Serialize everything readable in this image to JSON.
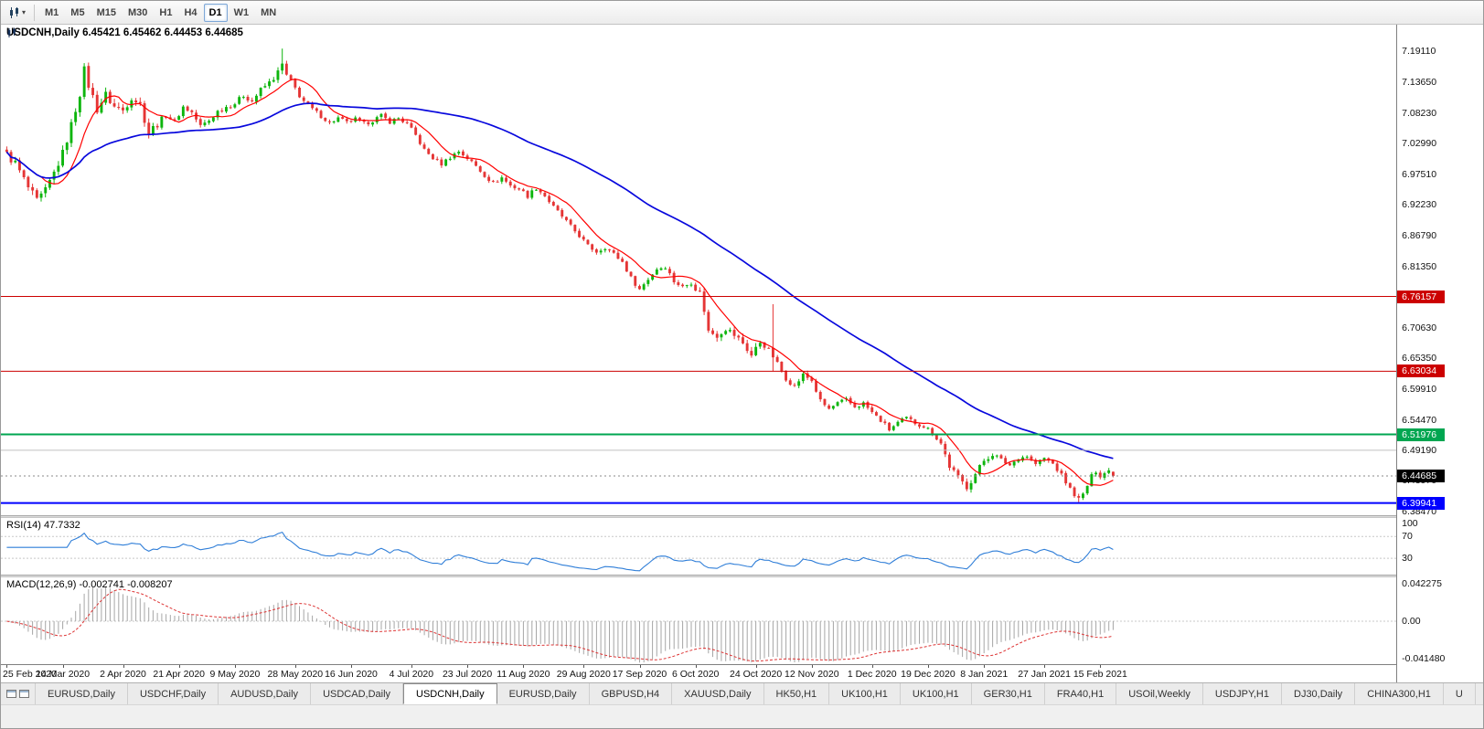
{
  "toolbar": {
    "timeframes": [
      {
        "label": "M1",
        "active": false
      },
      {
        "label": "M5",
        "active": false
      },
      {
        "label": "M15",
        "active": false
      },
      {
        "label": "M30",
        "active": false
      },
      {
        "label": "H1",
        "active": false
      },
      {
        "label": "H4",
        "active": false
      },
      {
        "label": "D1",
        "active": true
      },
      {
        "label": "W1",
        "active": false
      },
      {
        "label": "MN",
        "active": false
      }
    ]
  },
  "main_chart": {
    "title_line": "USDCNH,Daily 6.45421 6.45462 6.44453 6.44685"
  },
  "rsi_panel": {
    "label": "RSI(14) 47.7332"
  },
  "macd_panel": {
    "label": "MACD(12,26,9) -0.002741 -0.008207"
  },
  "tabs": {
    "items": [
      {
        "label": "EURUSD,Daily",
        "active": false
      },
      {
        "label": "USDCHF,Daily",
        "active": false
      },
      {
        "label": "AUDUSD,Daily",
        "active": false
      },
      {
        "label": "USDCAD,Daily",
        "active": false
      },
      {
        "label": "USDCNH,Daily",
        "active": true
      },
      {
        "label": "EURUSD,Daily",
        "active": false
      },
      {
        "label": "GBPUSD,H4",
        "active": false
      },
      {
        "label": "XAUUSD,Daily",
        "active": false
      },
      {
        "label": "HK50,H1",
        "active": false
      },
      {
        "label": "UK100,H1",
        "active": false
      },
      {
        "label": "UK100,H1",
        "active": false
      },
      {
        "label": "GER30,H1",
        "active": false
      },
      {
        "label": "FRA40,H1",
        "active": false
      },
      {
        "label": "USOil,Weekly",
        "active": false
      },
      {
        "label": "USDJPY,H1",
        "active": false
      },
      {
        "label": "DJ30,Daily",
        "active": false
      },
      {
        "label": "CHINA300,H1",
        "active": false
      },
      {
        "label": "U",
        "active": false
      }
    ]
  },
  "chart_data": {
    "type": "candlestick",
    "symbol": "USDCNH",
    "period": "Daily",
    "ohlc_current": {
      "open": 6.45421,
      "high": 6.45462,
      "low": 6.44453,
      "close": 6.44685
    },
    "x_labels": [
      "25 Feb 2020",
      "14 Mar 2020",
      "2 Apr 2020",
      "21 Apr 2020",
      "9 May 2020",
      "28 May 2020",
      "16 Jun 2020",
      "4 Jul 2020",
      "23 Jul 2020",
      "11 Aug 2020",
      "29 Aug 2020",
      "17 Sep 2020",
      "6 Oct 2020",
      "24 Oct 2020",
      "12 Nov 2020",
      "1 Dec 2020",
      "19 Dec 2020",
      "8 Jan 2021",
      "27 Jan 2021",
      "15 Feb 2021"
    ],
    "n_candles": 258,
    "last_label_index": 254,
    "data_fraction": 0.795,
    "y_axis": {
      "min": 6.378,
      "max": 7.238,
      "tick_labels": [
        "7.19110",
        "7.13650",
        "7.08230",
        "7.02990",
        "6.97510",
        "6.92230",
        "6.86790",
        "6.81350",
        "6.70630",
        "6.65350",
        "6.59910",
        "6.54470",
        "6.49190",
        "6.43970",
        "6.38470"
      ]
    },
    "hlines": [
      {
        "name": "level-line-gray",
        "price": 6.4919,
        "color": "#c0c0c0",
        "width": 1,
        "badge": null
      },
      {
        "name": "resistance-line-upper",
        "price": 6.76157,
        "color": "#cc0000",
        "width": 1,
        "badge": "6.76157"
      },
      {
        "name": "resistance-line-lower",
        "price": 6.63034,
        "color": "#cc0000",
        "width": 1,
        "badge": "6.63034"
      },
      {
        "name": "support-line-green",
        "price": 6.51976,
        "color": "#00a651",
        "width": 2,
        "badge": "6.51976"
      },
      {
        "name": "support-line-blue",
        "price": 6.39941,
        "color": "#0000ff",
        "width": 2,
        "badge": "6.39941"
      }
    ],
    "bid_line": {
      "price": 6.44685,
      "badge": "6.44685",
      "badge_color": "#000000"
    },
    "candle_up_color": "#0db50d",
    "candle_down_color": "#e53535",
    "ma_fast": {
      "period": 9,
      "color": "#ff0000"
    },
    "ma_slow": {
      "period": 55,
      "color": "#0808dd"
    },
    "noise": 0.0045,
    "wick": 0.005,
    "vol_zones": [
      [
        36,
        1.7
      ],
      [
        60,
        1.0
      ],
      [
        70,
        1.3
      ],
      [
        160,
        0.85
      ],
      [
        176,
        1.4
      ],
      [
        215,
        0.9
      ],
      [
        232,
        1.2
      ],
      [
        246,
        0.85
      ],
      [
        258,
        0.9
      ]
    ],
    "spikes": [
      {
        "i": 18,
        "high": 7.168
      },
      {
        "i": 64,
        "high": 7.196
      },
      {
        "i": 178,
        "high": 6.748,
        "low": 6.63
      },
      {
        "i": 249,
        "low": 6.401
      }
    ],
    "close_anchors": [
      [
        0,
        7.01
      ],
      [
        2,
        6.995
      ],
      [
        5,
        6.952
      ],
      [
        7,
        6.928
      ],
      [
        9,
        6.946
      ],
      [
        11,
        6.978
      ],
      [
        13,
        7.012
      ],
      [
        15,
        7.062
      ],
      [
        17,
        7.118
      ],
      [
        18,
        7.158
      ],
      [
        19,
        7.132
      ],
      [
        21,
        7.09
      ],
      [
        23,
        7.115
      ],
      [
        25,
        7.094
      ],
      [
        27,
        7.088
      ],
      [
        29,
        7.112
      ],
      [
        31,
        7.098
      ],
      [
        33,
        7.048
      ],
      [
        35,
        7.065
      ],
      [
        37,
        7.08
      ],
      [
        39,
        7.068
      ],
      [
        41,
        7.094
      ],
      [
        43,
        7.084
      ],
      [
        45,
        7.06
      ],
      [
        47,
        7.07
      ],
      [
        49,
        7.086
      ],
      [
        51,
        7.094
      ],
      [
        53,
        7.1
      ],
      [
        55,
        7.114
      ],
      [
        57,
        7.104
      ],
      [
        59,
        7.124
      ],
      [
        61,
        7.136
      ],
      [
        63,
        7.154
      ],
      [
        64,
        7.168
      ],
      [
        65,
        7.148
      ],
      [
        67,
        7.126
      ],
      [
        69,
        7.104
      ],
      [
        71,
        7.09
      ],
      [
        73,
        7.078
      ],
      [
        75,
        7.066
      ],
      [
        77,
        7.074
      ],
      [
        79,
        7.066
      ],
      [
        81,
        7.072
      ],
      [
        83,
        7.064
      ],
      [
        85,
        7.07
      ],
      [
        87,
        7.078
      ],
      [
        89,
        7.068
      ],
      [
        91,
        7.074
      ],
      [
        93,
        7.064
      ],
      [
        95,
        7.044
      ],
      [
        97,
        7.018
      ],
      [
        99,
        7.004
      ],
      [
        101,
        6.994
      ],
      [
        103,
        7.006
      ],
      [
        105,
        7.016
      ],
      [
        107,
        7.004
      ],
      [
        109,
        6.99
      ],
      [
        111,
        6.974
      ],
      [
        113,
        6.96
      ],
      [
        115,
        6.97
      ],
      [
        117,
        6.956
      ],
      [
        119,
        6.95
      ],
      [
        121,
        6.938
      ],
      [
        123,
        6.952
      ],
      [
        125,
        6.938
      ],
      [
        127,
        6.918
      ],
      [
        129,
        6.902
      ],
      [
        131,
        6.884
      ],
      [
        133,
        6.868
      ],
      [
        135,
        6.85
      ],
      [
        137,
        6.84
      ],
      [
        139,
        6.848
      ],
      [
        141,
        6.836
      ],
      [
        143,
        6.822
      ],
      [
        145,
        6.794
      ],
      [
        147,
        6.774
      ],
      [
        149,
        6.792
      ],
      [
        151,
        6.81
      ],
      [
        153,
        6.814
      ],
      [
        155,
        6.788
      ],
      [
        157,
        6.778
      ],
      [
        159,
        6.786
      ],
      [
        161,
        6.768
      ],
      [
        162,
        6.738
      ],
      [
        163,
        6.7
      ],
      [
        165,
        6.694
      ],
      [
        167,
        6.706
      ],
      [
        169,
        6.694
      ],
      [
        171,
        6.68
      ],
      [
        173,
        6.658
      ],
      [
        175,
        6.682
      ],
      [
        177,
        6.668
      ],
      [
        179,
        6.644
      ],
      [
        181,
        6.618
      ],
      [
        183,
        6.604
      ],
      [
        185,
        6.624
      ],
      [
        187,
        6.614
      ],
      [
        189,
        6.578
      ],
      [
        191,
        6.564
      ],
      [
        193,
        6.574
      ],
      [
        195,
        6.58
      ],
      [
        197,
        6.568
      ],
      [
        199,
        6.574
      ],
      [
        201,
        6.558
      ],
      [
        203,
        6.544
      ],
      [
        205,
        6.528
      ],
      [
        207,
        6.54
      ],
      [
        209,
        6.548
      ],
      [
        211,
        6.54
      ],
      [
        213,
        6.534
      ],
      [
        215,
        6.524
      ],
      [
        217,
        6.504
      ],
      [
        219,
        6.464
      ],
      [
        221,
        6.444
      ],
      [
        223,
        6.428
      ],
      [
        225,
        6.45
      ],
      [
        227,
        6.474
      ],
      [
        229,
        6.486
      ],
      [
        231,
        6.474
      ],
      [
        233,
        6.466
      ],
      [
        235,
        6.478
      ],
      [
        237,
        6.482
      ],
      [
        239,
        6.468
      ],
      [
        241,
        6.478
      ],
      [
        243,
        6.468
      ],
      [
        245,
        6.448
      ],
      [
        247,
        6.424
      ],
      [
        249,
        6.406
      ],
      [
        250,
        6.414
      ],
      [
        251,
        6.43
      ],
      [
        252,
        6.446
      ],
      [
        253,
        6.456
      ],
      [
        254,
        6.448
      ],
      [
        255,
        6.452
      ],
      [
        256,
        6.456
      ],
      [
        257,
        6.4469
      ]
    ],
    "rsi": {
      "period": 14,
      "current": 47.7332,
      "color": "#2f7ed8",
      "range": [
        0,
        104
      ],
      "levels": [
        {
          "value": 100,
          "label": "100",
          "dashed": false
        },
        {
          "value": 70,
          "label": "70",
          "dashed": true
        },
        {
          "value": 30,
          "label": "30",
          "dashed": true
        }
      ]
    },
    "macd": {
      "fast": 12,
      "slow": 26,
      "signal_period": 9,
      "macd_current": -0.002741,
      "signal_current": -0.008207,
      "bar_color": "#a6a6a6",
      "signal_color": "#dd3333",
      "range": [
        -0.04148,
        0.042275
      ],
      "tick_labels": [
        {
          "value": 0.042275,
          "label": "0.042275"
        },
        {
          "value": 0,
          "label": "0.00"
        },
        {
          "value": -0.04148,
          "label": "-0.041480"
        }
      ]
    }
  }
}
